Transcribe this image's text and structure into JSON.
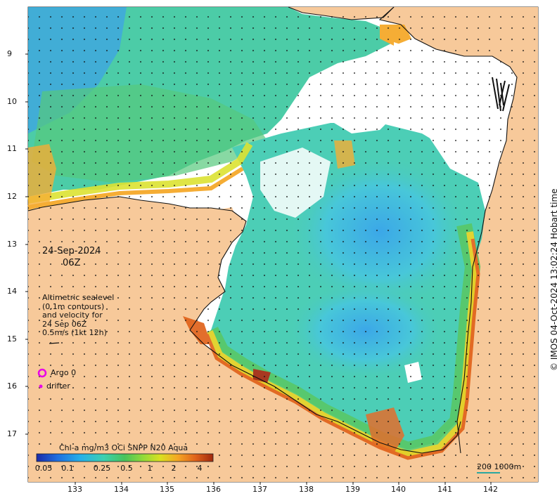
{
  "map": {
    "date": "24-Sep-2024",
    "time": "06Z",
    "altimetry_lines": [
      "Altimetric sealevel",
      "(0.1m contours)",
      "and velocity for",
      "24 Sep 06Z",
      "0.5m/s (1kt 12h)"
    ],
    "legend": [
      {
        "label": "Argo 0",
        "symbol": "ring",
        "color": "#e800e8"
      },
      {
        "label": "drifter",
        "symbol": "dot",
        "color": "#e800e8"
      }
    ],
    "colorbar": {
      "title": "Chl-a mg/m3 OCi SNPP N20 Aqua",
      "ticks": [
        "0.05",
        "0.1",
        "0.25",
        "0.5",
        "1",
        "2",
        "4"
      ],
      "stops": [
        "#1a2aa8",
        "#1f6fe0",
        "#27b0e8",
        "#3cd0b0",
        "#49c35a",
        "#8fd93a",
        "#d9e020",
        "#f5a623",
        "#e0621a",
        "#a0280e"
      ]
    },
    "credit": "© IMOS 04-Oct-2024 13:02:24 Hobart time",
    "scale_label": "200  1000m",
    "y_ticks": [
      "9",
      "10",
      "11",
      "12",
      "13",
      "14",
      "15",
      "16",
      "17"
    ],
    "x_ticks": [
      "133",
      "134",
      "135",
      "136",
      "137",
      "138",
      "139",
      "140",
      "141",
      "142"
    ],
    "colors": {
      "land": "#f7c99a",
      "ocean_blank": "#ffffff",
      "coast": "#111111"
    }
  }
}
